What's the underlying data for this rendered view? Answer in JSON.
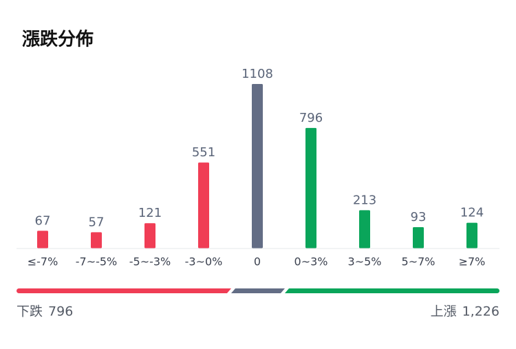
{
  "chart_data": {
    "type": "bar",
    "title": "漲跌分佈",
    "categories": [
      "≤-7%",
      "-7~-5%",
      "-5~-3%",
      "-3~0%",
      "0",
      "0~3%",
      "3~5%",
      "5~7%",
      "≥7%"
    ],
    "values": [
      67,
      57,
      121,
      551,
      1108,
      796,
      213,
      93,
      124
    ],
    "colors": [
      "#f03d55",
      "#f03d55",
      "#f03d55",
      "#f03d55",
      "#636d85",
      "#0aa55a",
      "#0aa55a",
      "#0aa55a",
      "#0aa55a"
    ],
    "grid": false,
    "summary": {
      "labels": [
        "下跌",
        "上漲"
      ],
      "values": [
        796,
        1226
      ],
      "value_labels": [
        "796",
        "1,226"
      ],
      "colors": [
        "#f03d55",
        "#636d85",
        "#0aa55a"
      ]
    }
  }
}
